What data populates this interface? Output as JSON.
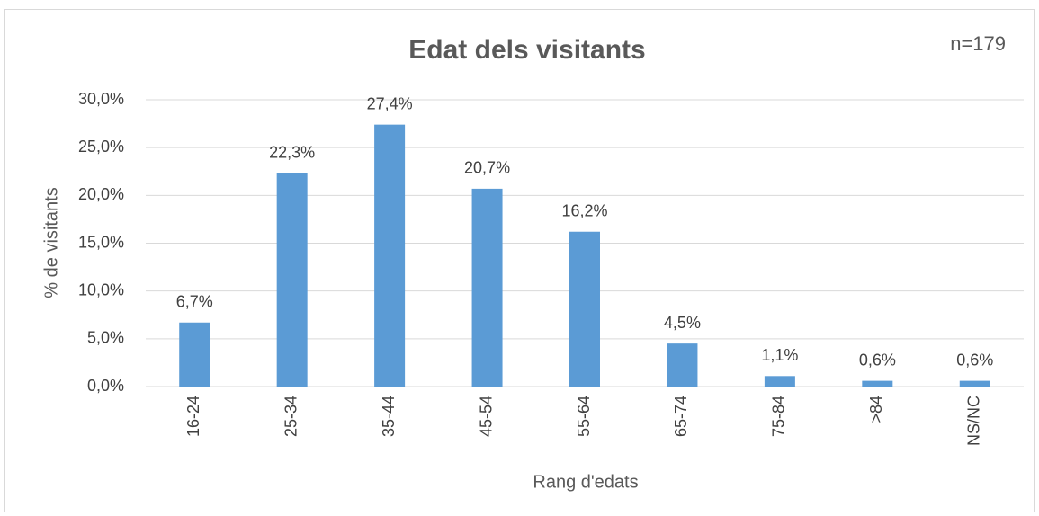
{
  "chart_data": {
    "type": "bar",
    "title": "Edat dels visitants",
    "annotation": "n=179",
    "x_label": "Rang d'edats",
    "y_label": "% de visitants",
    "categories": [
      "16-24",
      "25-34",
      "35-44",
      "45-54",
      "55-64",
      "65-74",
      "75-84",
      ">84",
      "NS/NC"
    ],
    "values": [
      6.7,
      22.3,
      27.4,
      20.7,
      16.2,
      4.5,
      1.1,
      0.6,
      0.6
    ],
    "value_labels": [
      "6,7%",
      "22,3%",
      "27,4%",
      "20,7%",
      "16,2%",
      "4,5%",
      "1,1%",
      "0,6%",
      "0,6%"
    ],
    "color": "#5b9bd5",
    "ylim": [
      0,
      30
    ],
    "yticks": [
      {
        "value": 0,
        "label": "0,0%"
      },
      {
        "value": 5,
        "label": "5,0%"
      },
      {
        "value": 10,
        "label": "10,0%"
      },
      {
        "value": 15,
        "label": "15,0%"
      },
      {
        "value": 20,
        "label": "20,0%"
      },
      {
        "value": 25,
        "label": "25,0%"
      },
      {
        "value": 30,
        "label": "30,0%"
      }
    ],
    "grid": true
  }
}
